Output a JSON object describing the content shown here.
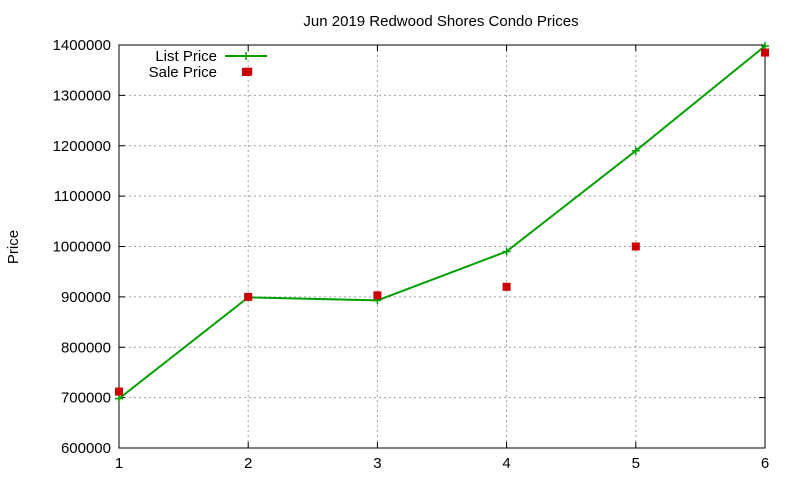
{
  "chart_data": {
    "type": "line",
    "title": "Jun 2019 Redwood Shores Condo Prices",
    "xlabel": "",
    "ylabel": "Price",
    "x": [
      1,
      2,
      3,
      4,
      5,
      6
    ],
    "xlim": [
      1,
      6
    ],
    "ylim": [
      600000,
      1400000
    ],
    "xticks": [
      "1",
      "2",
      "3",
      "4",
      "5",
      "6"
    ],
    "yticks": [
      "600000",
      "700000",
      "800000",
      "900000",
      "1000000",
      "1100000",
      "1200000",
      "1300000",
      "1400000"
    ],
    "grid": true,
    "legend_position": "top-left",
    "series": [
      {
        "name": "List Price",
        "style": "line-plus",
        "color": "#00a000",
        "points": [
          [
            1,
            698000
          ],
          [
            2,
            899000
          ],
          [
            3,
            893000
          ],
          [
            4,
            990000
          ],
          [
            5,
            1190000
          ],
          [
            6,
            1398000
          ]
        ]
      },
      {
        "name": "Sale Price",
        "style": "square",
        "color": "#cc0000",
        "points": [
          [
            1,
            712000
          ],
          [
            2,
            900000
          ],
          [
            2,
            1347000
          ],
          [
            3,
            903000
          ],
          [
            4,
            920000
          ],
          [
            5,
            1000000
          ],
          [
            6,
            1385000
          ]
        ]
      }
    ]
  }
}
